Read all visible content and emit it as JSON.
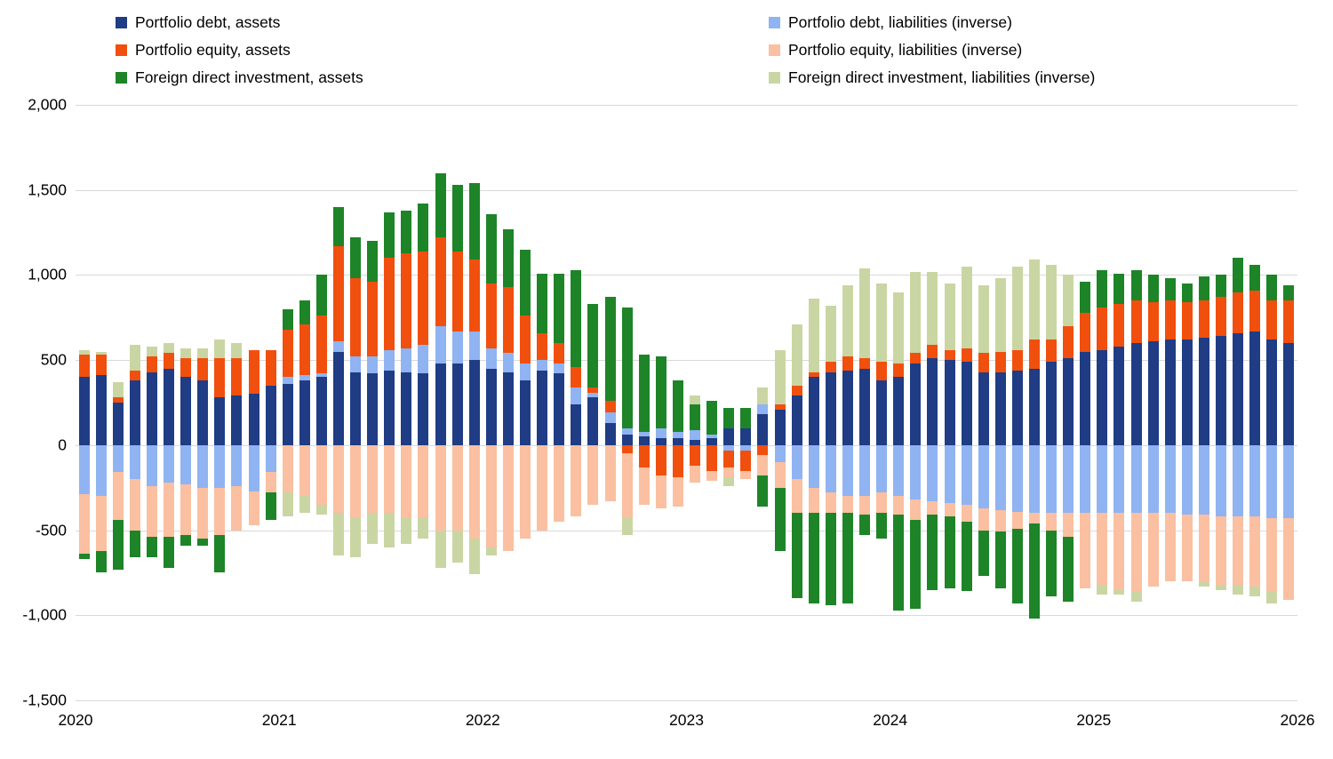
{
  "chart_data": {
    "type": "bar",
    "stacked": true,
    "title": "",
    "xlabel": "",
    "ylabel": "",
    "ylim": [
      -1500,
      2000
    ],
    "ytick_step": 500,
    "gridline_color": "#d9d9d9",
    "background": "#ffffff",
    "x_years": [
      "2020",
      "2021",
      "2022",
      "2023",
      "2024",
      "2025",
      "2026"
    ],
    "months_per_year": 12,
    "legend_columns": {
      "left": "assets",
      "right": "liabilities (inverse)"
    },
    "series": [
      {
        "name": "Portfolio debt, assets",
        "color": "#1f3c85",
        "legend_column": "left",
        "values": [
          400,
          410,
          250,
          380,
          430,
          450,
          400,
          380,
          280,
          290,
          300,
          350,
          360,
          380,
          400,
          550,
          430,
          420,
          440,
          430,
          420,
          480,
          480,
          500,
          450,
          430,
          380,
          440,
          420,
          240,
          280,
          130,
          60,
          50,
          40,
          40,
          30,
          40,
          100,
          100,
          180,
          210,
          290,
          400,
          430,
          440,
          450,
          380,
          400,
          480,
          510,
          500,
          490,
          430,
          430,
          440,
          450,
          490,
          510,
          550,
          560,
          580,
          600,
          610,
          620,
          620,
          630,
          640,
          660,
          670,
          620,
          600
        ]
      },
      {
        "name": "Portfolio debt, liabilities (inverse)",
        "color": "#90b3f2",
        "legend_column": "right",
        "values": [
          -290,
          -300,
          -160,
          -200,
          -240,
          -220,
          -230,
          -250,
          -250,
          -240,
          -270,
          -160,
          40,
          30,
          20,
          60,
          90,
          100,
          120,
          140,
          170,
          220,
          190,
          170,
          120,
          110,
          100,
          60,
          60,
          100,
          30,
          60,
          40,
          30,
          60,
          40,
          60,
          20,
          -30,
          -30,
          60,
          -100,
          -200,
          -250,
          -280,
          -300,
          -300,
          -280,
          -300,
          -320,
          -330,
          -340,
          -350,
          -370,
          -380,
          -390,
          -400,
          -400,
          -400,
          -400,
          -400,
          -400,
          -400,
          -400,
          -400,
          -410,
          -410,
          -420,
          -420,
          -420,
          -430,
          -430
        ]
      },
      {
        "name": "Portfolio equity, assets",
        "color": "#f14f0e",
        "legend_column": "left",
        "values": [
          130,
          120,
          30,
          60,
          90,
          90,
          110,
          130,
          230,
          220,
          260,
          210,
          280,
          300,
          340,
          560,
          460,
          440,
          540,
          560,
          550,
          520,
          470,
          420,
          380,
          390,
          280,
          160,
          120,
          120,
          30,
          70,
          -50,
          -130,
          -180,
          -190,
          -120,
          -150,
          -100,
          -120,
          -60,
          30,
          60,
          30,
          60,
          80,
          60,
          110,
          80,
          60,
          80,
          60,
          80,
          110,
          120,
          120,
          170,
          130,
          190,
          230,
          250,
          250,
          250,
          230,
          230,
          220,
          220,
          230,
          240,
          240,
          230,
          250
        ]
      },
      {
        "name": "Portfolio equity, liabilities (inverse)",
        "color": "#fac0a1",
        "legend_column": "right",
        "values": [
          -350,
          -320,
          -280,
          -300,
          -300,
          -320,
          -300,
          -300,
          -280,
          -260,
          -200,
          -120,
          -280,
          -300,
          -350,
          -400,
          -430,
          -400,
          -400,
          -430,
          -430,
          -500,
          -500,
          -550,
          -600,
          -620,
          -550,
          -500,
          -450,
          -420,
          -350,
          -330,
          -380,
          -220,
          -190,
          -170,
          -100,
          -60,
          -60,
          -50,
          -120,
          -150,
          -200,
          -150,
          -120,
          -100,
          -110,
          -120,
          -110,
          -120,
          -80,
          -80,
          -100,
          -130,
          -130,
          -100,
          -60,
          -100,
          -140,
          -440,
          -420,
          -450,
          -460,
          -430,
          -400,
          -390,
          -390,
          -400,
          -400,
          -410,
          -430,
          -480
        ]
      },
      {
        "name": "Foreign direct investment, assets",
        "color": "#1e8428",
        "legend_column": "left",
        "values": [
          -30,
          -130,
          -290,
          -160,
          -120,
          -180,
          -60,
          -40,
          -220,
          0,
          0,
          -160,
          120,
          140,
          240,
          230,
          240,
          240,
          270,
          250,
          280,
          380,
          390,
          450,
          410,
          340,
          390,
          350,
          410,
          570,
          490,
          610,
          710,
          450,
          420,
          300,
          150,
          200,
          120,
          120,
          -180,
          -370,
          -500,
          -530,
          -540,
          -530,
          -120,
          -150,
          -560,
          -520,
          -440,
          -420,
          -410,
          -270,
          -330,
          -440,
          -560,
          -390,
          -380,
          180,
          220,
          180,
          180,
          160,
          130,
          110,
          140,
          130,
          200,
          150,
          150,
          90
        ]
      },
      {
        "name": "Foreign direct investment, liabilities (inverse)",
        "color": "#c9d6a3",
        "legend_column": "right",
        "values": [
          30,
          20,
          90,
          150,
          60,
          60,
          60,
          60,
          110,
          90,
          0,
          0,
          -140,
          -100,
          -60,
          -250,
          -230,
          -180,
          -200,
          -150,
          -120,
          -220,
          -190,
          -210,
          -50,
          0,
          0,
          0,
          0,
          0,
          0,
          0,
          -100,
          0,
          0,
          0,
          50,
          0,
          -50,
          0,
          100,
          320,
          360,
          430,
          330,
          420,
          530,
          460,
          420,
          480,
          430,
          390,
          480,
          400,
          430,
          490,
          470,
          440,
          300,
          0,
          -60,
          -30,
          -60,
          0,
          0,
          0,
          -30,
          -30,
          -60,
          -60,
          -70,
          0
        ]
      }
    ]
  }
}
